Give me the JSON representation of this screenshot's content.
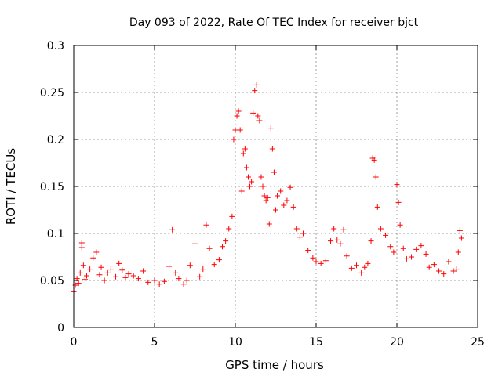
{
  "chart_data": {
    "type": "scatter",
    "title": "Day 093 of 2022, Rate Of TEC Index for receiver bjct",
    "xlabel": "GPS time / hours",
    "ylabel": "ROTI / TECUs",
    "xlim": [
      0,
      25
    ],
    "ylim": [
      0,
      0.3
    ],
    "xticks": [
      0,
      5,
      10,
      15,
      20,
      25
    ],
    "yticks": [
      0,
      0.05,
      0.1,
      0.15,
      0.2,
      0.25,
      0.3
    ],
    "xtick_labels": [
      "0",
      "5",
      "10",
      "15",
      "20",
      "25"
    ],
    "ytick_labels": [
      "0",
      "0.05",
      "0.1",
      "0.15",
      "0.2",
      "0.25",
      "0.3"
    ],
    "grid": true,
    "marker": "+",
    "color": "#ff0000",
    "series": [
      {
        "x": [
          0.0,
          0.1,
          0.2,
          0.3,
          0.4,
          0.5,
          0.5,
          0.6,
          0.7,
          0.8,
          1.0,
          1.2,
          1.4,
          1.6,
          1.7,
          1.9,
          2.1,
          2.3,
          2.6,
          2.8,
          3.0,
          3.2,
          3.4,
          3.7,
          4.0,
          4.3,
          4.6,
          5.0,
          5.3,
          5.6,
          5.9,
          6.1,
          6.3,
          6.5,
          6.8,
          7.0,
          7.2,
          7.5,
          7.8,
          8.0,
          8.2,
          8.4,
          8.7,
          9.0,
          9.2,
          9.4,
          9.6,
          9.8,
          9.9,
          10.0,
          10.1,
          10.2,
          10.3,
          10.4,
          10.5,
          10.6,
          10.7,
          10.8,
          10.9,
          11.0,
          11.1,
          11.2,
          11.3,
          11.4,
          11.5,
          11.6,
          11.7,
          11.8,
          11.9,
          12.0,
          12.1,
          12.2,
          12.3,
          12.4,
          12.5,
          12.6,
          12.8,
          13.0,
          13.2,
          13.4,
          13.6,
          13.8,
          14.0,
          14.2,
          14.5,
          14.8,
          15.0,
          15.3,
          15.6,
          15.9,
          16.1,
          16.3,
          16.5,
          16.7,
          16.9,
          17.2,
          17.5,
          17.8,
          18.0,
          18.2,
          18.4,
          18.5,
          18.6,
          18.7,
          18.8,
          19.0,
          19.3,
          19.6,
          19.8,
          20.0,
          20.1,
          20.2,
          20.4,
          20.6,
          20.9,
          21.2,
          21.5,
          21.8,
          22.0,
          22.3,
          22.6,
          22.9,
          23.2,
          23.5,
          23.7,
          23.8,
          23.9,
          24.0
        ],
        "y": [
          0.038,
          0.045,
          0.052,
          0.047,
          0.058,
          0.085,
          0.09,
          0.066,
          0.051,
          0.055,
          0.062,
          0.074,
          0.08,
          0.056,
          0.064,
          0.05,
          0.058,
          0.062,
          0.054,
          0.068,
          0.061,
          0.053,
          0.057,
          0.055,
          0.052,
          0.06,
          0.048,
          0.05,
          0.046,
          0.049,
          0.065,
          0.104,
          0.058,
          0.052,
          0.046,
          0.05,
          0.066,
          0.089,
          0.054,
          0.062,
          0.109,
          0.084,
          0.067,
          0.072,
          0.086,
          0.092,
          0.105,
          0.118,
          0.2,
          0.21,
          0.225,
          0.23,
          0.21,
          0.145,
          0.185,
          0.19,
          0.17,
          0.16,
          0.15,
          0.155,
          0.228,
          0.252,
          0.258,
          0.225,
          0.22,
          0.16,
          0.15,
          0.14,
          0.135,
          0.138,
          0.11,
          0.212,
          0.19,
          0.165,
          0.125,
          0.14,
          0.145,
          0.13,
          0.135,
          0.149,
          0.128,
          0.105,
          0.096,
          0.1,
          0.082,
          0.074,
          0.07,
          0.068,
          0.071,
          0.092,
          0.105,
          0.093,
          0.089,
          0.104,
          0.076,
          0.063,
          0.066,
          0.058,
          0.064,
          0.068,
          0.092,
          0.18,
          0.178,
          0.16,
          0.128,
          0.105,
          0.098,
          0.086,
          0.08,
          0.152,
          0.133,
          0.109,
          0.084,
          0.073,
          0.075,
          0.083,
          0.087,
          0.078,
          0.064,
          0.067,
          0.06,
          0.057,
          0.07,
          0.06,
          0.062,
          0.08,
          0.103,
          0.095
        ]
      }
    ]
  }
}
